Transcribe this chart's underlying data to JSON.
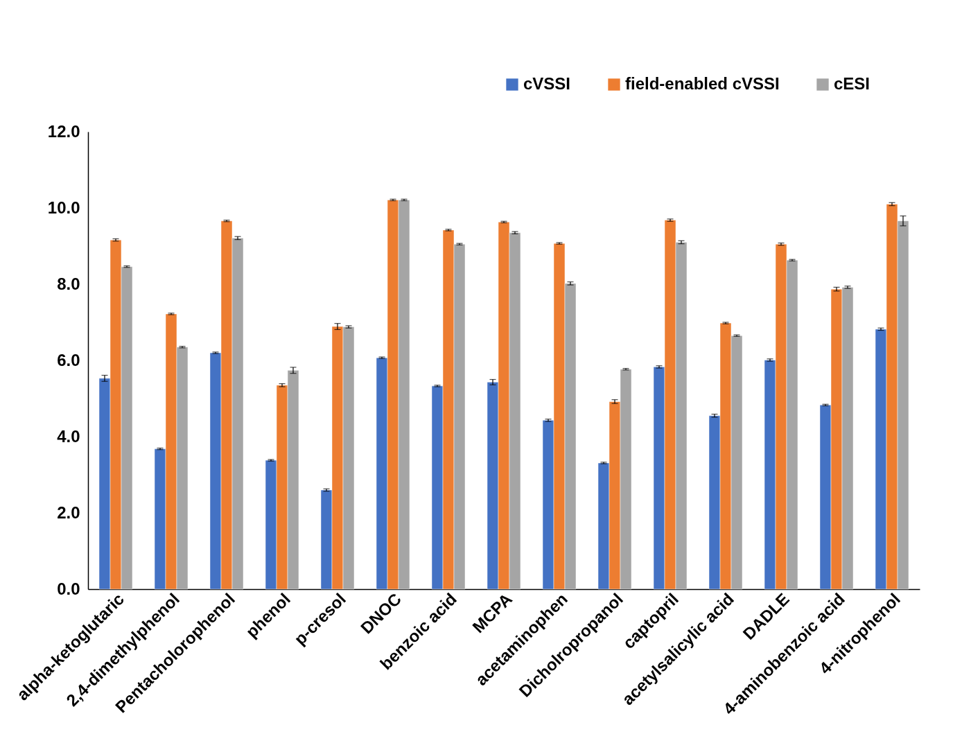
{
  "chart_data": {
    "type": "bar",
    "categories": [
      "alpha-ketoglutaric",
      "2,4-dimethylphenol",
      "Pentacholorophenol",
      "phenol",
      "p-cresol",
      "DNOC",
      "benzoic acid",
      "MCPA",
      "acetaminophen",
      "Dicholropropanol",
      "captopril",
      "acetylsalicylic acid",
      "DADLE",
      "4-aminobenzoic acid",
      "4-nitrophenol"
    ],
    "series": [
      {
        "name": "cVSSI",
        "color": "#4472c4",
        "values": [
          5.53,
          3.68,
          6.2,
          3.38,
          2.6,
          6.07,
          5.33,
          5.43,
          4.43,
          3.31,
          5.83,
          4.55,
          6.01,
          4.83,
          6.82
        ],
        "errors": [
          0.08,
          0.02,
          0.02,
          0.02,
          0.03,
          0.02,
          0.02,
          0.07,
          0.03,
          0.02,
          0.03,
          0.04,
          0.03,
          0.02,
          0.03
        ]
      },
      {
        "name": "field-enabled cVSSI",
        "color": "#ed7d31",
        "values": [
          9.16,
          7.22,
          9.66,
          5.35,
          6.89,
          10.21,
          9.42,
          9.63,
          9.07,
          4.92,
          9.68,
          6.98,
          9.05,
          7.87,
          10.1
        ],
        "errors": [
          0.03,
          0.02,
          0.02,
          0.04,
          0.08,
          0.02,
          0.02,
          0.02,
          0.02,
          0.05,
          0.03,
          0.02,
          0.03,
          0.05,
          0.04
        ]
      },
      {
        "name": "cESI",
        "color": "#a5a5a5",
        "values": [
          8.46,
          6.35,
          9.21,
          5.74,
          6.88,
          10.21,
          9.05,
          9.35,
          8.02,
          5.77,
          9.1,
          6.65,
          8.63,
          7.92,
          9.66
        ],
        "errors": [
          0.02,
          0.02,
          0.04,
          0.08,
          0.03,
          0.02,
          0.02,
          0.03,
          0.04,
          0.02,
          0.04,
          0.02,
          0.02,
          0.03,
          0.13
        ]
      }
    ],
    "ylim": [
      0,
      12
    ],
    "yticks": [
      {
        "value": 0,
        "label": "0.0"
      },
      {
        "value": 2,
        "label": "2.0"
      },
      {
        "value": 4,
        "label": "4.0"
      },
      {
        "value": 6,
        "label": "6.0"
      },
      {
        "value": 8,
        "label": "8.0"
      },
      {
        "value": 10,
        "label": "10.0"
      },
      {
        "value": 12,
        "label": "12.0"
      }
    ],
    "grid": false,
    "legend": "top right"
  }
}
